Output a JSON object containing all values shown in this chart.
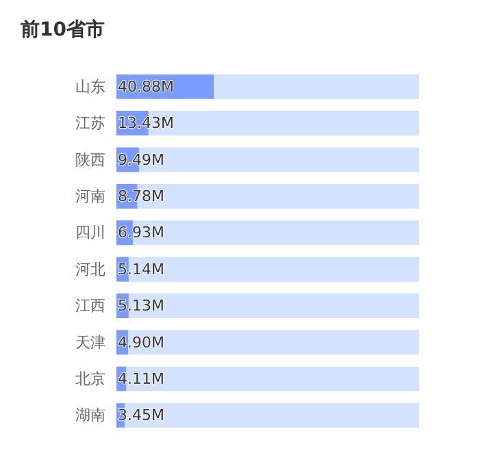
{
  "chart_data": {
    "type": "bar",
    "orientation": "horizontal",
    "title": "前10省市",
    "stacked": true,
    "categories": [
      "山东",
      "江苏",
      "陕西",
      "河南",
      "四川",
      "河北",
      "江西",
      "天津",
      "北京",
      "湖南"
    ],
    "series": [
      {
        "color": "#7b9cfc",
        "values": [
          40.88,
          13.43,
          9.49,
          8.78,
          6.93,
          5.14,
          5.13,
          4.9,
          4.11,
          3.45
        ],
        "value_labels": [
          "40.88M",
          "13.43M",
          "9.49M",
          "8.78M",
          "6.93M",
          "5.14M",
          "5.13M",
          "4.90M",
          "4.11M",
          "3.45M"
        ]
      },
      {
        "color": "#d2e2ff",
        "values": [
          86.12,
          113.57,
          117.51,
          118.22,
          120.07,
          121.86,
          121.87,
          122.1,
          122.89,
          123.55
        ]
      }
    ],
    "xlim": [
      0,
      127
    ],
    "tick_labels": "y",
    "grid": false
  }
}
